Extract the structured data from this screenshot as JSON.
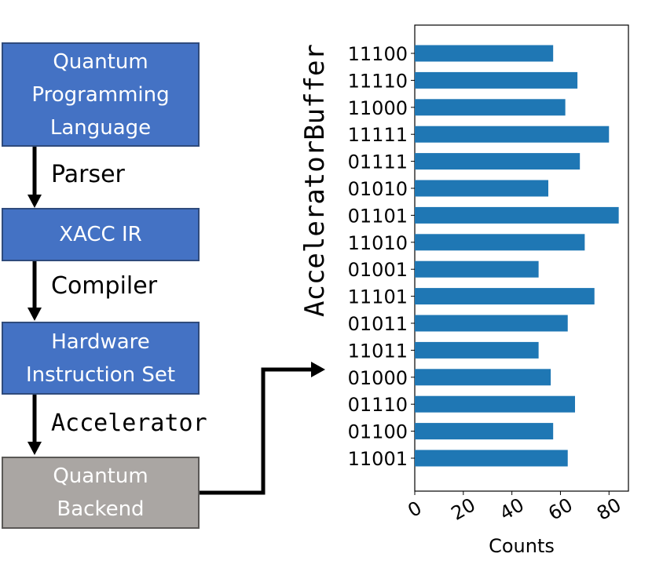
{
  "flow": {
    "boxes": [
      {
        "label": "Quantum\nProgramming\nLanguage",
        "color": "#4472c4"
      },
      {
        "label": "XACC IR",
        "color": "#4472c4"
      },
      {
        "label": "Hardware\nInstruction Set",
        "color": "#4472c4"
      },
      {
        "label": "Quantum\nBackend",
        "color": "#aaa6a3"
      }
    ],
    "edges": [
      {
        "label": "Parser"
      },
      {
        "label": "Compiler"
      },
      {
        "label": "Accelerator"
      }
    ]
  },
  "chart_data": {
    "type": "bar",
    "orientation": "horizontal",
    "title": "AcceleratorBuffer",
    "xlabel": "Counts",
    "ylabel": "",
    "xlim": [
      0,
      88
    ],
    "xticks": [
      "0",
      "20",
      "40",
      "60",
      "80"
    ],
    "bar_color": "#1f77b4",
    "grid": false,
    "categories": [
      "11100",
      "11110",
      "11000",
      "11111",
      "01111",
      "01010",
      "01101",
      "11010",
      "01001",
      "11101",
      "01011",
      "11011",
      "01000",
      "01110",
      "01100",
      "11001"
    ],
    "values": [
      57,
      67,
      62,
      80,
      68,
      55,
      84,
      70,
      51,
      74,
      63,
      51,
      56,
      66,
      57,
      63
    ]
  }
}
